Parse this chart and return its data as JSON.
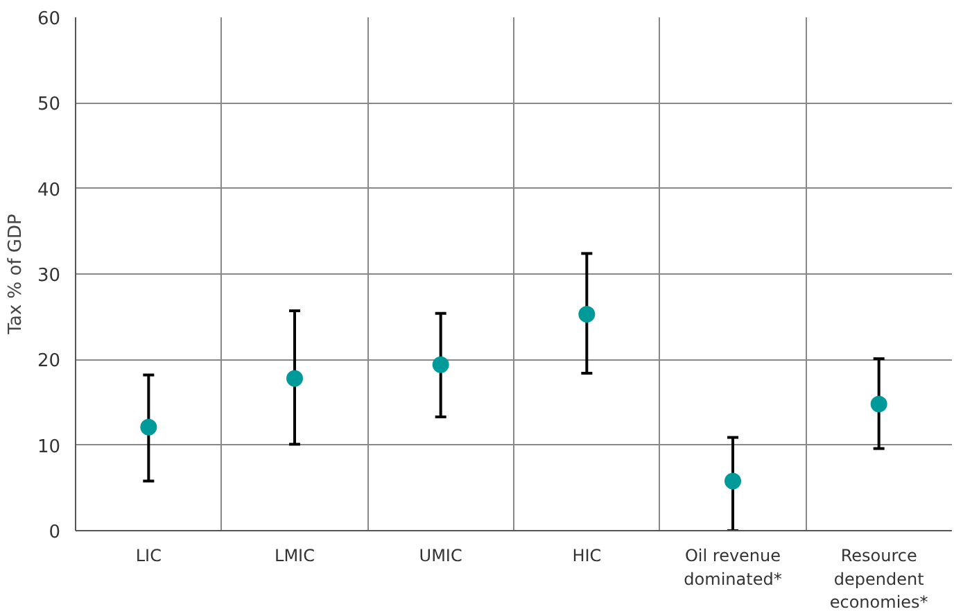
{
  "chart_data": {
    "type": "scatter",
    "ylabel": "Tax % of GDP",
    "categories": [
      "LIC",
      "LMIC",
      "UMIC",
      "HIC",
      "Oil revenue dominated*",
      "Resource dependent economies*"
    ],
    "values": [
      12.1,
      17.8,
      19.4,
      25.3,
      5.8,
      14.8
    ],
    "errors": [
      [
        5.8,
        18.2
      ],
      [
        10.1,
        25.7
      ],
      [
        13.3,
        25.4
      ],
      [
        18.4,
        32.4
      ],
      [
        0,
        10.9
      ],
      [
        9.6,
        20.1
      ]
    ],
    "color": "#009a9a",
    "marker": "circle",
    "ylim": [
      0,
      60
    ],
    "yticks": [
      0,
      10,
      20,
      30,
      40,
      50,
      60
    ],
    "grid": true
  }
}
